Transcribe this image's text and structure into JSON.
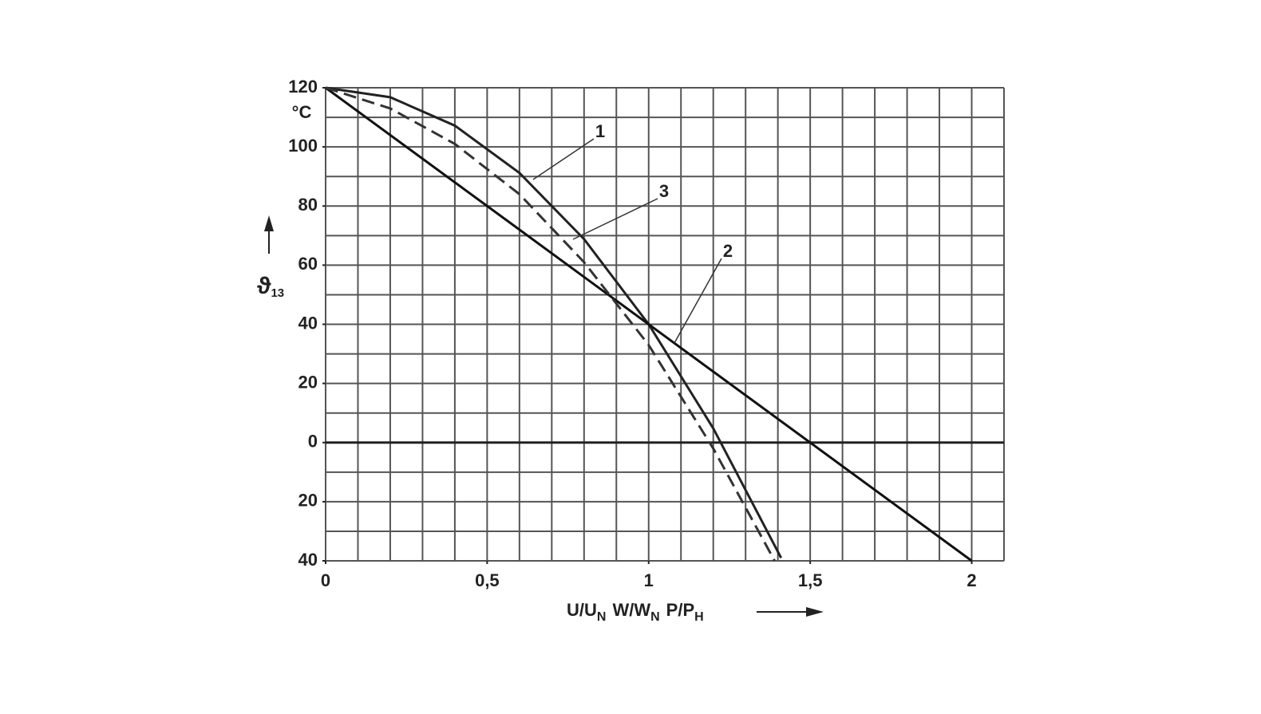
{
  "chart_data": {
    "type": "line",
    "y_label": {
      "main": "ϑ",
      "sub": "13"
    },
    "y_unit": "°C",
    "x_label": [
      {
        "main": "U/U",
        "sub": "N"
      },
      {
        "main": "W/W",
        "sub": "N"
      },
      {
        "main": "P/P",
        "sub": "H"
      }
    ],
    "xlim": [
      0,
      2.1
    ],
    "ylim": [
      -40,
      120
    ],
    "xticks": [
      0,
      {
        "value": 0.5,
        "label": "0,5"
      },
      1,
      {
        "value": 1.5,
        "label": "1,5"
      },
      2
    ],
    "yticks": [
      {
        "value": -40,
        "label": "40"
      },
      {
        "value": -20,
        "label": "20"
      },
      0,
      20,
      40,
      60,
      80,
      100,
      120
    ],
    "xgrid": [
      0,
      0.1,
      0.2,
      0.3,
      0.4,
      0.5,
      0.6,
      0.7,
      0.8,
      0.9,
      1,
      1.1,
      1.2,
      1.3,
      1.4,
      1.5,
      1.6,
      1.7,
      1.8,
      1.9,
      2,
      2.1
    ],
    "ygrid": [
      -40,
      -30,
      -20,
      -10,
      0,
      10,
      20,
      30,
      40,
      50,
      60,
      70,
      80,
      90,
      100,
      110,
      120
    ],
    "grid": true,
    "series": [
      {
        "name": "1",
        "color": "#222222",
        "dashed": false,
        "x": [
          0,
          0.2,
          0.4,
          0.6,
          0.8,
          1.0,
          1.2,
          1.41
        ],
        "values": [
          120,
          116.8,
          107.2,
          91.2,
          68.8,
          40,
          4.8,
          -39
        ]
      },
      {
        "name": "2",
        "color": "#111111",
        "dashed": false,
        "x": [
          0,
          2
        ],
        "values": [
          120,
          -40
        ]
      },
      {
        "name": "3",
        "color": "#333333",
        "dashed": true,
        "x": [
          0,
          0.2,
          0.4,
          0.6,
          0.8,
          1.0,
          1.2,
          1.39
        ],
        "values": [
          120,
          113,
          101,
          84,
          61,
          33,
          -2,
          -40
        ]
      }
    ]
  }
}
